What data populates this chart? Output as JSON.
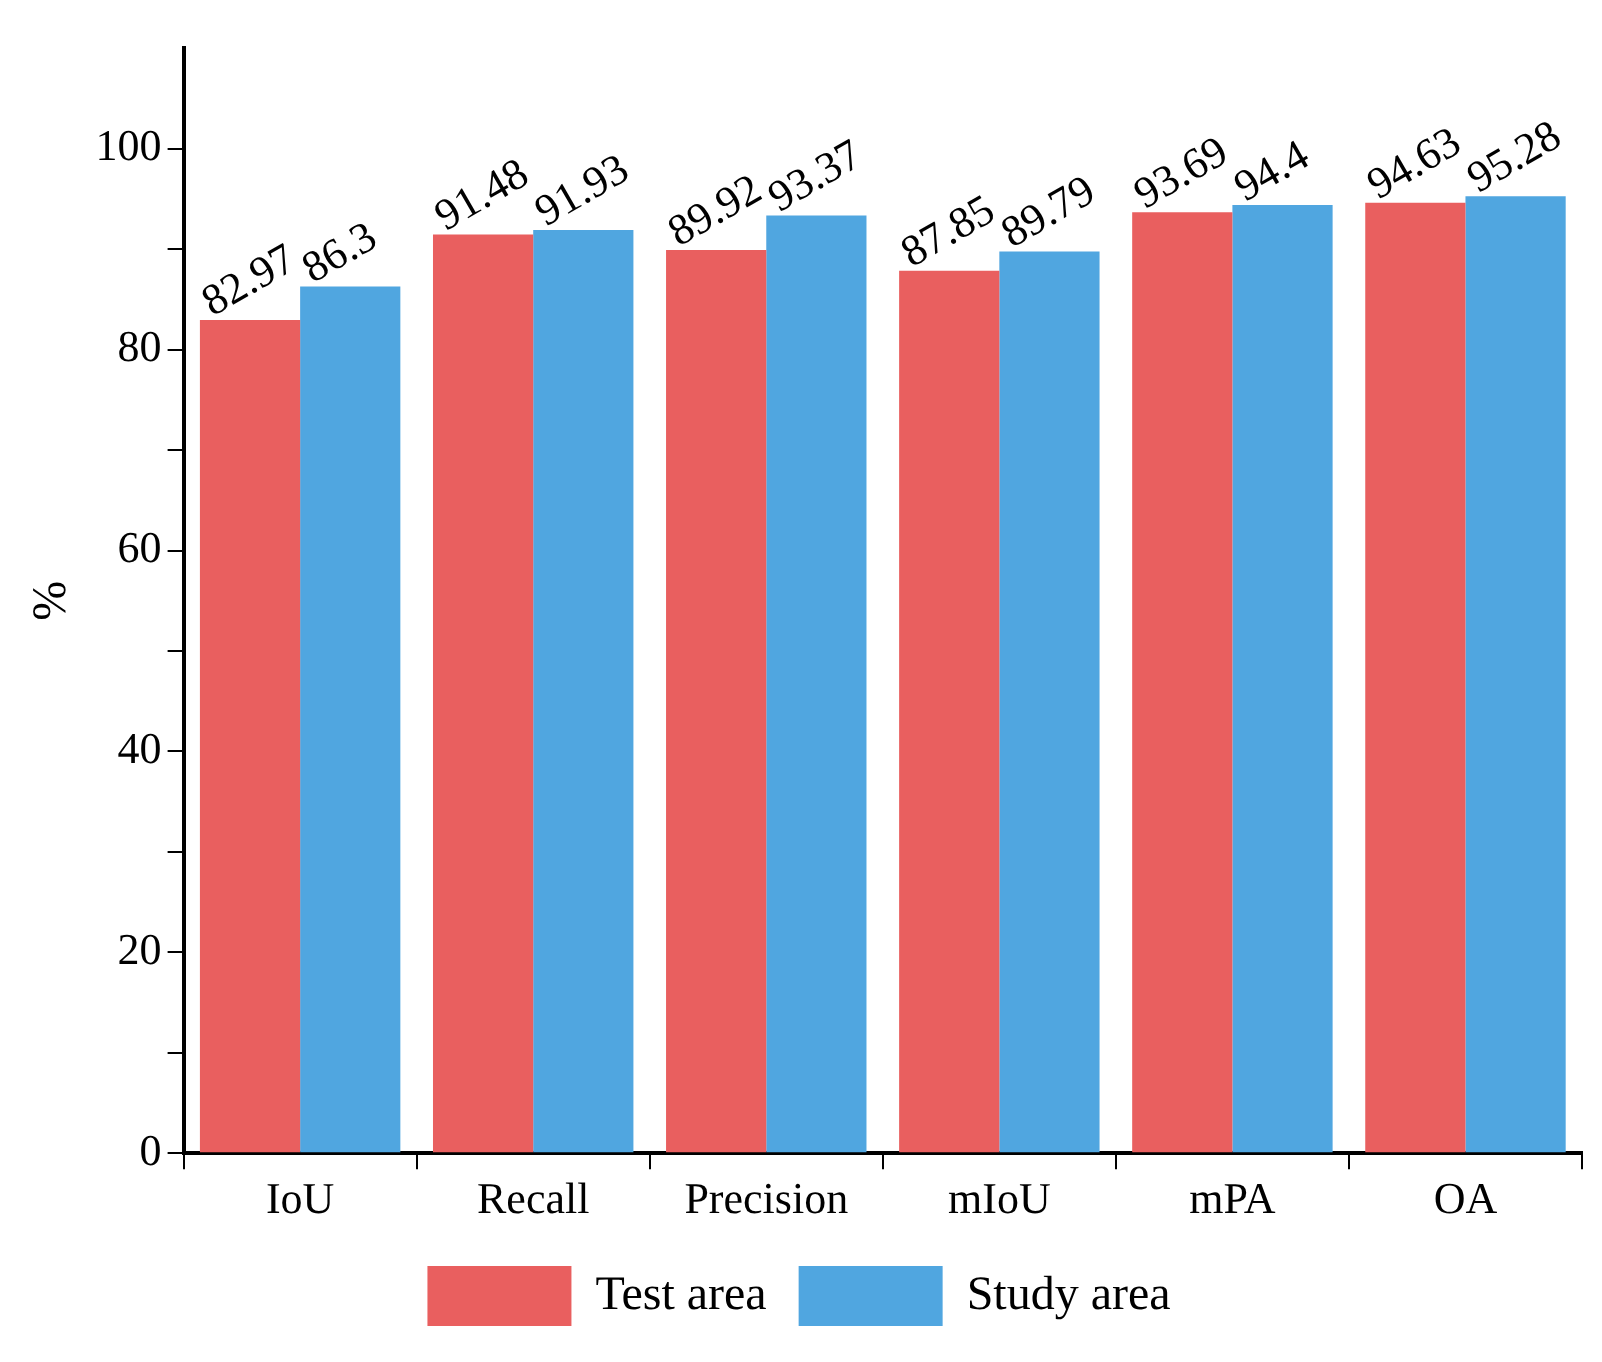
{
  "chart_data": {
    "type": "bar",
    "ylabel": "%",
    "categories": [
      "IoU",
      "Recall",
      "Precision",
      "mIoU",
      "mPA",
      "OA"
    ],
    "series": [
      {
        "name": "Test area",
        "color": "#e95f5f",
        "values": [
          82.97,
          91.48,
          89.92,
          87.85,
          93.69,
          94.63
        ]
      },
      {
        "name": "Study area",
        "color": "#50a6e0",
        "values": [
          86.3,
          91.93,
          93.37,
          89.79,
          94.4,
          95.28
        ]
      }
    ],
    "ylim": [
      0,
      110
    ],
    "yticks": [
      0,
      {
        "value": 10,
        "label": null
      },
      20,
      {
        "value": 30,
        "label": null
      },
      40,
      {
        "value": 50,
        "label": null
      },
      60,
      {
        "value": 70,
        "label": null
      },
      80,
      {
        "value": 90,
        "label": null
      },
      100
    ],
    "grid": false,
    "legend": "bottom",
    "data_labels": true
  }
}
